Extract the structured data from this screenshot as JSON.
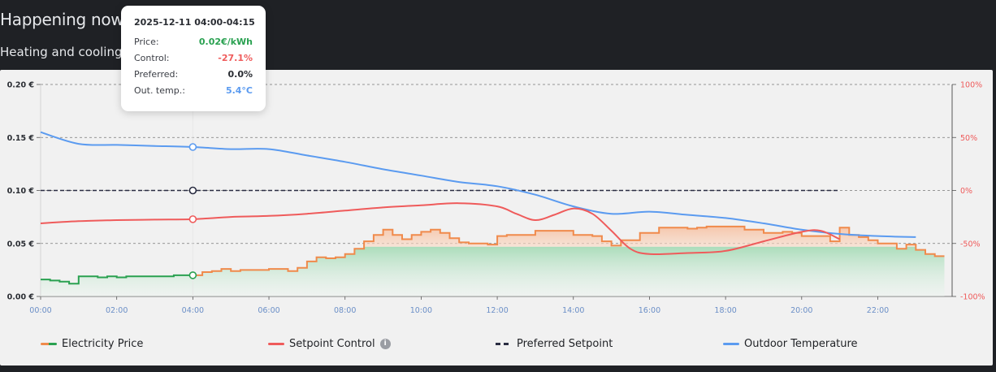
{
  "header": {
    "title": "Happening now",
    "subtitle": "Heating and cooling c"
  },
  "tooltip": {
    "title": "2025-12-11 04:00-04:15",
    "rows": [
      {
        "label": "Price:",
        "value": "0.02€/kWh",
        "color": "#2aa151"
      },
      {
        "label": "Control:",
        "value": "-27.1%",
        "color": "#ef5b5b"
      },
      {
        "label": "Preferred:",
        "value": "0.0%",
        "color": "#2a2d33"
      },
      {
        "label": "Out. temp.:",
        "value": "5.4°C",
        "color": "#5b9bf0"
      }
    ]
  },
  "legend": [
    {
      "label": "Electricity Price",
      "style": "price"
    },
    {
      "label": "Setpoint Control",
      "style": "control",
      "info": "i"
    },
    {
      "label": "Preferred Setpoint",
      "style": "preferred"
    },
    {
      "label": "Outdoor Temperature",
      "style": "temperature"
    }
  ],
  "colors": {
    "price_past": "#2aa151",
    "price_future": "#f08a4b",
    "control": "#ef5b5b",
    "preferred": "#2a2d42",
    "temperature": "#5b9bf0"
  },
  "chart_data": {
    "type": "line",
    "x_ticks": [
      "00:00",
      "02:00",
      "04:00",
      "06:00",
      "08:00",
      "10:00",
      "12:00",
      "14:00",
      "16:00",
      "18:00",
      "20:00",
      "22:00"
    ],
    "y_left": {
      "ticks": [
        "0.00 €",
        "0.05 €",
        "0.10 €",
        "0.15 €",
        "0.20 €"
      ],
      "range": [
        0,
        0.2
      ],
      "unit": "€"
    },
    "y_right": {
      "ticks": [
        "-100%",
        "-50%",
        "0%",
        "50%",
        "100%"
      ],
      "range": [
        -100,
        100
      ],
      "unit": "%"
    },
    "grid": true,
    "legend_position": "bottom",
    "highlight_time": 4.0,
    "series": [
      {
        "name": "Electricity Price",
        "axis": "left",
        "step": true,
        "points": [
          [
            0,
            0.016
          ],
          [
            0.25,
            0.015
          ],
          [
            0.5,
            0.014
          ],
          [
            0.75,
            0.012
          ],
          [
            1,
            0.019
          ],
          [
            1.25,
            0.019
          ],
          [
            1.5,
            0.018
          ],
          [
            1.75,
            0.019
          ],
          [
            2,
            0.018
          ],
          [
            2.25,
            0.019
          ],
          [
            2.5,
            0.019
          ],
          [
            2.75,
            0.019
          ],
          [
            3,
            0.019
          ],
          [
            3.25,
            0.019
          ],
          [
            3.5,
            0.02
          ],
          [
            3.75,
            0.02
          ],
          [
            4,
            0.02
          ],
          [
            4.25,
            0.023
          ],
          [
            4.5,
            0.024
          ],
          [
            4.75,
            0.026
          ],
          [
            5,
            0.024
          ],
          [
            5.25,
            0.025
          ],
          [
            5.5,
            0.025
          ],
          [
            5.75,
            0.025
          ],
          [
            6,
            0.026
          ],
          [
            6.25,
            0.026
          ],
          [
            6.5,
            0.024
          ],
          [
            6.75,
            0.027
          ],
          [
            7,
            0.033
          ],
          [
            7.25,
            0.037
          ],
          [
            7.5,
            0.036
          ],
          [
            7.75,
            0.037
          ],
          [
            8,
            0.04
          ],
          [
            8.25,
            0.045
          ],
          [
            8.5,
            0.052
          ],
          [
            8.75,
            0.058
          ],
          [
            9,
            0.063
          ],
          [
            9.25,
            0.058
          ],
          [
            9.5,
            0.054
          ],
          [
            9.75,
            0.058
          ],
          [
            10,
            0.061
          ],
          [
            10.25,
            0.063
          ],
          [
            10.5,
            0.06
          ],
          [
            10.75,
            0.055
          ],
          [
            11,
            0.051
          ],
          [
            11.25,
            0.05
          ],
          [
            11.5,
            0.05
          ],
          [
            11.75,
            0.049
          ],
          [
            12,
            0.057
          ],
          [
            12.25,
            0.058
          ],
          [
            12.5,
            0.058
          ],
          [
            12.75,
            0.058
          ],
          [
            13,
            0.062
          ],
          [
            13.25,
            0.062
          ],
          [
            13.5,
            0.062
          ],
          [
            13.75,
            0.062
          ],
          [
            14,
            0.058
          ],
          [
            14.25,
            0.058
          ],
          [
            14.5,
            0.057
          ],
          [
            14.75,
            0.052
          ],
          [
            15,
            0.048
          ],
          [
            15.25,
            0.053
          ],
          [
            15.5,
            0.053
          ],
          [
            15.75,
            0.06
          ],
          [
            16,
            0.06
          ],
          [
            16.25,
            0.065
          ],
          [
            16.5,
            0.065
          ],
          [
            16.75,
            0.065
          ],
          [
            17,
            0.064
          ],
          [
            17.25,
            0.065
          ],
          [
            17.5,
            0.066
          ],
          [
            17.75,
            0.066
          ],
          [
            18,
            0.066
          ],
          [
            18.25,
            0.066
          ],
          [
            18.5,
            0.063
          ],
          [
            18.75,
            0.063
          ],
          [
            19,
            0.06
          ],
          [
            19.25,
            0.06
          ],
          [
            19.5,
            0.061
          ],
          [
            19.75,
            0.06
          ],
          [
            20,
            0.057
          ],
          [
            20.25,
            0.057
          ],
          [
            20.5,
            0.057
          ],
          [
            20.75,
            0.052
          ],
          [
            21,
            0.065
          ],
          [
            21.25,
            0.058
          ],
          [
            21.5,
            0.056
          ],
          [
            21.75,
            0.053
          ],
          [
            22,
            0.05
          ],
          [
            22.25,
            0.05
          ],
          [
            22.5,
            0.045
          ],
          [
            22.75,
            0.049
          ],
          [
            23,
            0.044
          ],
          [
            23.25,
            0.04
          ],
          [
            23.5,
            0.038
          ]
        ]
      },
      {
        "name": "Setpoint Control",
        "axis": "right",
        "points": [
          [
            0,
            -31
          ],
          [
            1,
            -29
          ],
          [
            2,
            -28
          ],
          [
            3,
            -27.5
          ],
          [
            4,
            -27.1
          ],
          [
            5,
            -25
          ],
          [
            6,
            -24
          ],
          [
            7,
            -22
          ],
          [
            8,
            -19
          ],
          [
            9,
            -16
          ],
          [
            10,
            -14
          ],
          [
            11,
            -12
          ],
          [
            12,
            -15
          ],
          [
            12.5,
            -22
          ],
          [
            13,
            -28
          ],
          [
            13.5,
            -23
          ],
          [
            14,
            -17
          ],
          [
            14.5,
            -22
          ],
          [
            15,
            -38
          ],
          [
            15.5,
            -55
          ],
          [
            16,
            -60
          ],
          [
            17,
            -59
          ],
          [
            18,
            -57
          ],
          [
            19,
            -48
          ],
          [
            20,
            -39
          ],
          [
            20.5,
            -38
          ],
          [
            21,
            -46
          ]
        ]
      },
      {
        "name": "Preferred Setpoint",
        "axis": "right",
        "points": [
          [
            0,
            0
          ],
          [
            21,
            0
          ]
        ]
      },
      {
        "name": "Outdoor Temperature",
        "axis": "right",
        "points": [
          [
            0,
            55
          ],
          [
            1,
            44
          ],
          [
            2,
            43
          ],
          [
            3,
            42
          ],
          [
            4,
            41
          ],
          [
            5,
            39
          ],
          [
            6,
            39
          ],
          [
            7,
            33
          ],
          [
            8,
            27
          ],
          [
            9,
            20
          ],
          [
            10,
            14
          ],
          [
            11,
            8
          ],
          [
            12,
            4
          ],
          [
            13,
            -4
          ],
          [
            14,
            -15
          ],
          [
            15,
            -22
          ],
          [
            16,
            -20
          ],
          [
            17,
            -23
          ],
          [
            18,
            -26
          ],
          [
            19,
            -31
          ],
          [
            20,
            -37
          ],
          [
            21,
            -41
          ],
          [
            22,
            -43
          ],
          [
            23,
            -44
          ]
        ]
      }
    ]
  }
}
